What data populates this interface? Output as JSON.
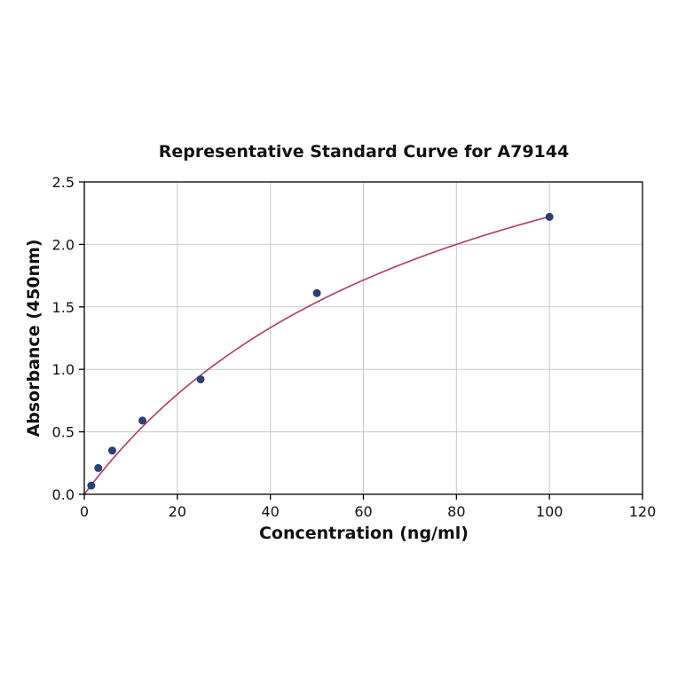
{
  "chart_data": {
    "type": "scatter",
    "title": "Representative Standard Curve for A79144",
    "xlabel": "Concentration (ng/ml)",
    "ylabel": "Absorbance (450nm)",
    "xlim": [
      0,
      120
    ],
    "ylim": [
      0,
      2.5
    ],
    "xticks": [
      0,
      20,
      40,
      60,
      80,
      100,
      120
    ],
    "xtick_labels": [
      "0",
      "20",
      "40",
      "60",
      "80",
      "100",
      "120"
    ],
    "yticks": [
      0,
      0.5,
      1.0,
      1.5,
      2.0,
      2.5
    ],
    "ytick_labels": [
      "0.0",
      "0.5",
      "1.0",
      "1.5",
      "2.0",
      "2.5"
    ],
    "grid": true,
    "grid_color": "#c9c9c9",
    "border_color": "#000000",
    "point_color": "#2e3f72",
    "line_color": "#b1436c",
    "points": [
      {
        "x": 1.5,
        "y": 0.07
      },
      {
        "x": 3,
        "y": 0.21
      },
      {
        "x": 6,
        "y": 0.35
      },
      {
        "x": 12.5,
        "y": 0.59
      },
      {
        "x": 25,
        "y": 0.92
      },
      {
        "x": 50,
        "y": 1.61
      },
      {
        "x": 100,
        "y": 2.22
      }
    ],
    "fit_curve": {
      "model": "y = a*x/(b+x)",
      "a": 4.0,
      "b": 80.0,
      "x_range": [
        0,
        100
      ]
    },
    "legend": null
  }
}
